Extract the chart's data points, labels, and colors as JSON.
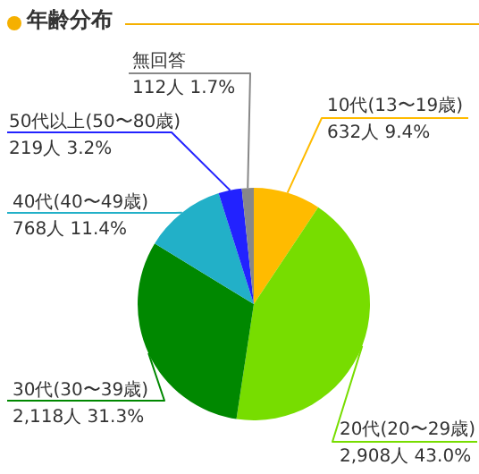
{
  "chart_data": {
    "type": "pie",
    "title": "年齢分布",
    "categories": [
      "10代(13〜19歳)",
      "20代(20〜29歳)",
      "30代(30〜39歳)",
      "40代(40〜49歳)",
      "50代以上(50〜80歳)",
      "無回答"
    ],
    "values": [
      632,
      2908,
      2118,
      768,
      219,
      112
    ],
    "value_labels": [
      "632人 9.4%",
      "2,908人 43.0%",
      "2,118人 31.3%",
      "768人 11.4%",
      "219人 3.2%",
      "112人 1.7%"
    ],
    "colors": [
      "#ffbb00",
      "#77dd00",
      "#008800",
      "#22b0c8",
      "#2222ff",
      "#888888"
    ],
    "legend": false
  }
}
